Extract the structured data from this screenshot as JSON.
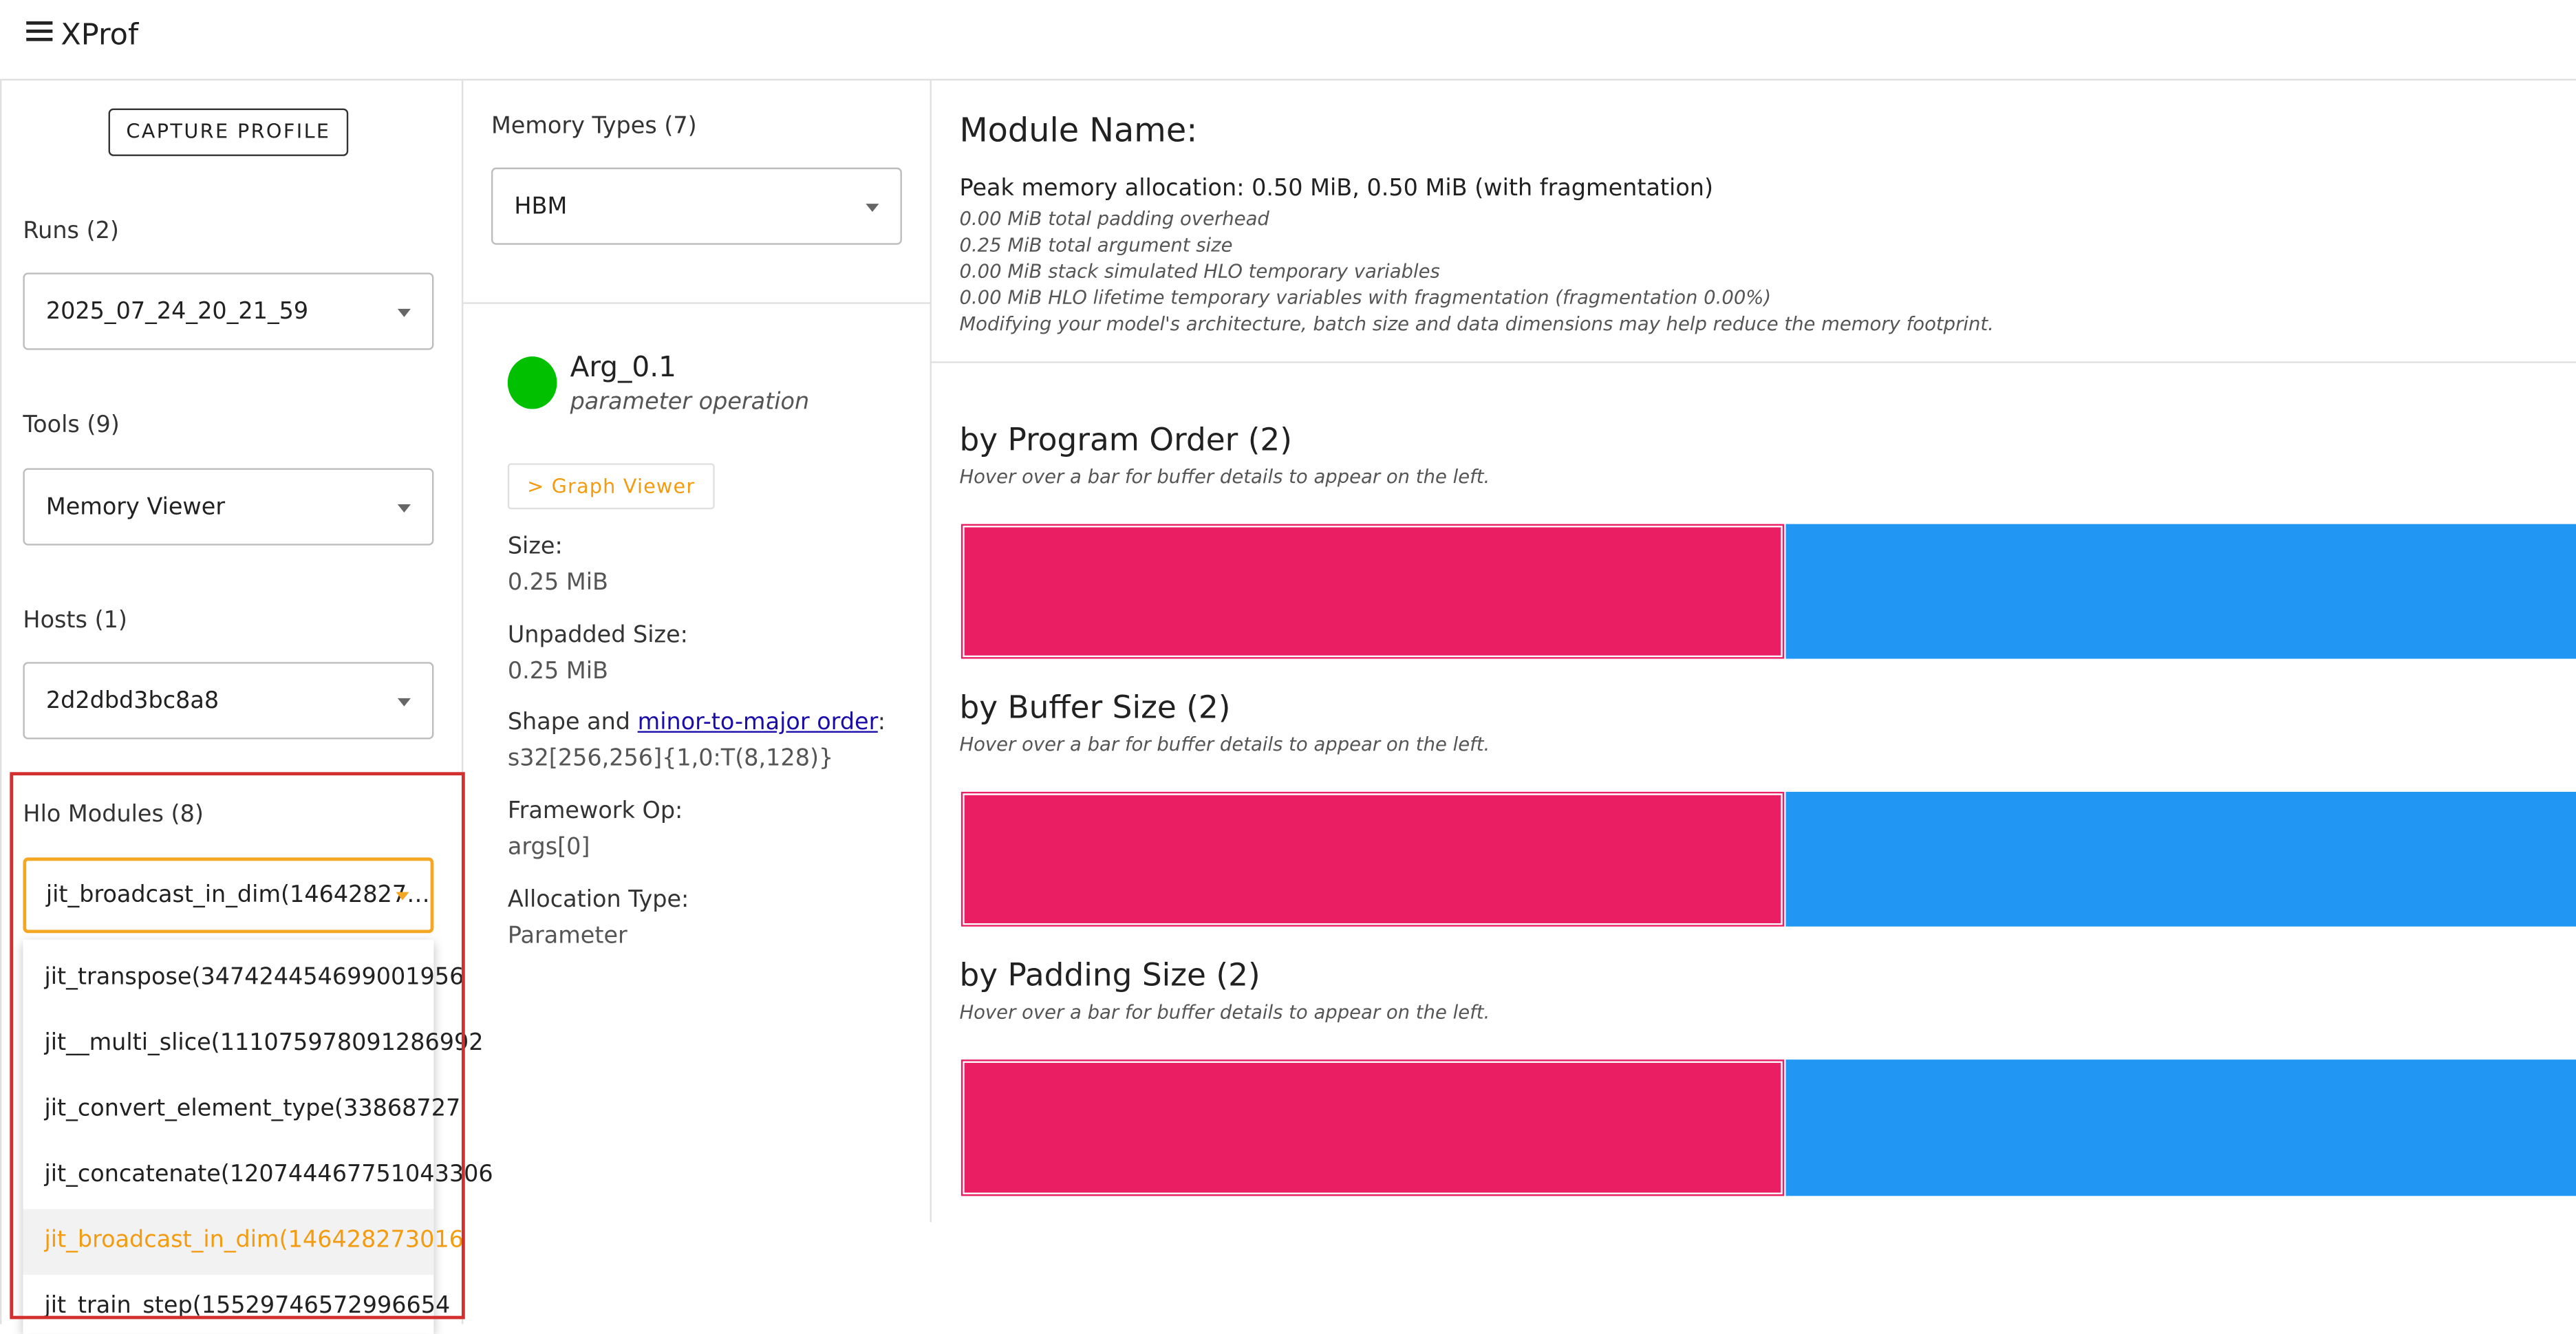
{
  "header": {
    "title": "XProf"
  },
  "sidebar": {
    "capture_button": "CAPTURE PROFILE",
    "runs": {
      "label": "Runs (2)",
      "value": "2025_07_24_20_21_59"
    },
    "tools": {
      "label": "Tools (9)",
      "value": "Memory Viewer"
    },
    "hosts": {
      "label": "Hosts (1)",
      "value": "2d2dbd3bc8a8"
    },
    "hlo_modules": {
      "label": "Hlo Modules (8)",
      "value": "jit_broadcast_in_dim(14642827…",
      "options": [
        "jit_transpose(347424454699001956",
        "jit__multi_slice(111075978091286992",
        "jit_convert_element_type(33868727",
        "jit_concatenate(120744467751043306",
        "jit_broadcast_in_dim(146428273016",
        "jit_train_step(15529746572996654"
      ]
    }
  },
  "middle": {
    "memory_types": {
      "label": "Memory Types (7)",
      "value": "HBM"
    },
    "buffer": {
      "name": "Arg_0.1",
      "op": "parameter operation",
      "graph_viewer": "> Graph Viewer",
      "size_label": "Size:",
      "size_value": "0.25 MiB",
      "unpadded_label": "Unpadded Size:",
      "unpadded_value": "0.25 MiB",
      "shape_prefix": "Shape and ",
      "shape_link": "minor-to-major order",
      "shape_suffix": ":",
      "shape_value": "s32[256,256]{1,0:T(8,128)}",
      "framework_label": "Framework Op:",
      "framework_value": "args[0]",
      "allocation_label": "Allocation Type:",
      "allocation_value": "Parameter"
    }
  },
  "main": {
    "module_name": "Module Name:",
    "peak": "Peak memory allocation: 0.50 MiB, 0.50 MiB (with fragmentation)",
    "notes": [
      "0.00 MiB total padding overhead",
      "0.25 MiB total argument size",
      "0.00 MiB stack simulated HLO temporary variables",
      "0.00 MiB HLO lifetime temporary variables with fragmentation (fragmentation 0.00%)",
      "Modifying your model's architecture, batch size and data dimensions may help reduce the memory footprint."
    ],
    "sections": [
      {
        "title": "by Program Order (2)",
        "hint": "Hover over a bar for buffer details to appear on the left."
      },
      {
        "title": "by Buffer Size (2)",
        "hint": "Hover over a bar for buffer details to appear on the left."
      },
      {
        "title": "by Padding Size (2)",
        "hint": "Hover over a bar for buffer details to appear on the left."
      }
    ]
  }
}
